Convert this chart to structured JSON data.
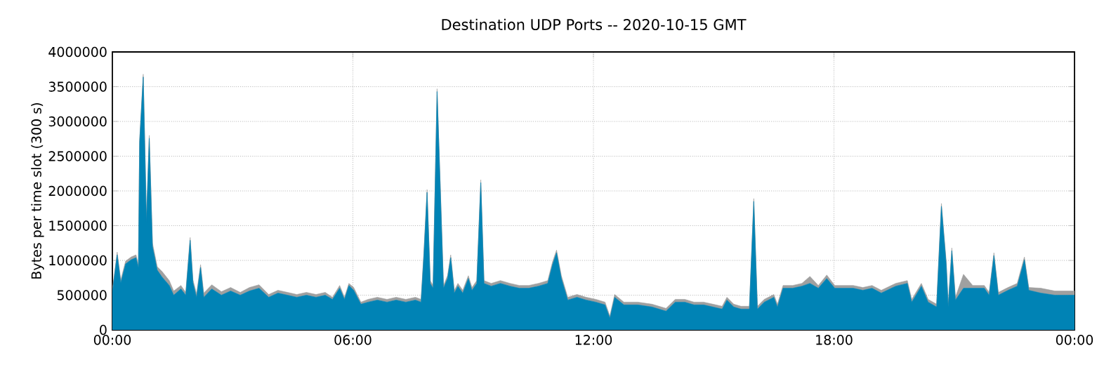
{
  "chart_data": {
    "type": "area",
    "stacked": true,
    "title": "Destination UDP Ports -- 2020-10-15 GMT",
    "ylabel": "Bytes per time slot (300 s)",
    "x": [
      0,
      0.12,
      0.21,
      0.33,
      0.47,
      0.59,
      0.65,
      0.68,
      0.77,
      0.85,
      0.92,
      1.0,
      1.12,
      1.24,
      1.42,
      1.53,
      1.71,
      1.83,
      1.94,
      2.01,
      2.1,
      2.2,
      2.28,
      2.48,
      2.72,
      2.95,
      3.19,
      3.42,
      3.66,
      3.9,
      4.13,
      4.37,
      4.6,
      4.84,
      5.08,
      5.31,
      5.49,
      5.67,
      5.79,
      5.9,
      6.02,
      6.2,
      6.38,
      6.61,
      6.85,
      7.08,
      7.32,
      7.56,
      7.7,
      7.77,
      7.85,
      7.93,
      8.0,
      8.1,
      8.18,
      8.26,
      8.36,
      8.44,
      8.53,
      8.62,
      8.74,
      8.88,
      8.97,
      9.09,
      9.19,
      9.27,
      9.45,
      9.68,
      9.92,
      10.15,
      10.39,
      10.63,
      10.86,
      10.98,
      11.08,
      11.2,
      11.36,
      11.59,
      11.82,
      12.06,
      12.29,
      12.41,
      12.53,
      12.76,
      13.11,
      13.46,
      13.81,
      14.04,
      14.28,
      14.51,
      14.75,
      14.98,
      15.21,
      15.33,
      15.5,
      15.68,
      15.89,
      16.0,
      16.09,
      16.26,
      16.5,
      16.59,
      16.73,
      16.97,
      17.2,
      17.4,
      17.61,
      17.82,
      18.02,
      18.25,
      18.48,
      18.72,
      18.95,
      19.18,
      19.54,
      19.83,
      19.94,
      20.18,
      20.35,
      20.56,
      20.68,
      20.8,
      20.85,
      20.94,
      21.03,
      21.23,
      21.46,
      21.75,
      21.87,
      21.99,
      22.1,
      22.34,
      22.57,
      22.75,
      22.86,
      23.16,
      23.51,
      23.86,
      24.0
    ],
    "series": [
      {
        "color": "#0083b5",
        "values": [
          540000,
          1080000,
          680000,
          950000,
          1010000,
          1040000,
          900000,
          2700000,
          3640000,
          1550000,
          2760000,
          1200000,
          860000,
          760000,
          640000,
          500000,
          590000,
          500000,
          1290000,
          680000,
          470000,
          900000,
          470000,
          590000,
          500000,
          560000,
          500000,
          560000,
          600000,
          470000,
          530000,
          500000,
          470000,
          500000,
          470000,
          500000,
          440000,
          600000,
          440000,
          640000,
          570000,
          370000,
          400000,
          430000,
          400000,
          430000,
          400000,
          430000,
          400000,
          1070000,
          1980000,
          670000,
          600000,
          3430000,
          2020000,
          600000,
          740000,
          1040000,
          530000,
          630000,
          530000,
          740000,
          570000,
          670000,
          2120000,
          670000,
          630000,
          670000,
          630000,
          600000,
          600000,
          630000,
          670000,
          940000,
          1110000,
          740000,
          430000,
          470000,
          430000,
          400000,
          360000,
          170000,
          470000,
          360000,
          360000,
          330000,
          270000,
          400000,
          400000,
          360000,
          360000,
          330000,
          300000,
          430000,
          330000,
          300000,
          300000,
          1850000,
          300000,
          400000,
          470000,
          330000,
          600000,
          600000,
          630000,
          670000,
          600000,
          740000,
          600000,
          600000,
          600000,
          570000,
          600000,
          530000,
          630000,
          670000,
          400000,
          630000,
          400000,
          330000,
          1780000,
          940000,
          330000,
          1140000,
          430000,
          600000,
          600000,
          600000,
          500000,
          1070000,
          500000,
          570000,
          630000,
          1010000,
          570000,
          530000,
          500000,
          500000,
          500000
        ]
      },
      {
        "color": "#a0a0a0",
        "values": [
          40000,
          40000,
          40000,
          40000,
          40000,
          40000,
          40000,
          40000,
          40000,
          40000,
          40000,
          50000,
          50000,
          80000,
          70000,
          60000,
          50000,
          40000,
          40000,
          40000,
          50000,
          40000,
          60000,
          60000,
          50000,
          50000,
          40000,
          50000,
          50000,
          40000,
          40000,
          40000,
          40000,
          40000,
          40000,
          40000,
          30000,
          40000,
          30000,
          30000,
          40000,
          30000,
          40000,
          40000,
          40000,
          40000,
          40000,
          40000,
          40000,
          40000,
          40000,
          40000,
          40000,
          40000,
          40000,
          40000,
          40000,
          40000,
          40000,
          40000,
          40000,
          40000,
          40000,
          40000,
          40000,
          40000,
          40000,
          40000,
          40000,
          40000,
          40000,
          40000,
          40000,
          40000,
          40000,
          40000,
          40000,
          40000,
          40000,
          40000,
          40000,
          30000,
          40000,
          40000,
          40000,
          40000,
          40000,
          40000,
          40000,
          40000,
          40000,
          40000,
          40000,
          40000,
          40000,
          40000,
          40000,
          40000,
          40000,
          40000,
          40000,
          40000,
          40000,
          40000,
          40000,
          100000,
          40000,
          50000,
          40000,
          40000,
          40000,
          40000,
          40000,
          40000,
          40000,
          40000,
          40000,
          40000,
          40000,
          40000,
          40000,
          40000,
          40000,
          40000,
          40000,
          200000,
          40000,
          40000,
          40000,
          40000,
          40000,
          40000,
          40000,
          40000,
          40000,
          70000,
          60000,
          60000,
          60000
        ]
      }
    ],
    "xlim": [
      0,
      24
    ],
    "xticks": [
      {
        "value": 0,
        "label": "00:00"
      },
      {
        "value": 6,
        "label": "06:00"
      },
      {
        "value": 12,
        "label": "12:00"
      },
      {
        "value": 18,
        "label": "18:00"
      },
      {
        "value": 24,
        "label": "00:00"
      }
    ],
    "ylim": [
      0,
      4000000
    ],
    "yticks": [
      0,
      500000,
      1000000,
      1500000,
      2000000,
      2500000,
      3000000,
      3500000,
      4000000
    ],
    "grid": true
  }
}
